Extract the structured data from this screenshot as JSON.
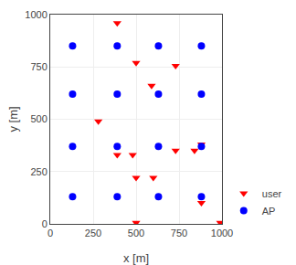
{
  "chart_data": {
    "type": "scatter",
    "xlabel": "x [m]",
    "ylabel": "y [m]",
    "series": [
      {
        "name": "user",
        "color": "#ff0000",
        "marker": "triangle-down",
        "x": [
          390,
          500,
          730,
          590,
          280,
          390,
          480,
          500,
          600,
          730,
          840,
          880,
          880,
          990,
          500
        ],
        "values": [
          960,
          770,
          755,
          660,
          490,
          330,
          330,
          220,
          220,
          350,
          350,
          380,
          100,
          5,
          5
        ]
      },
      {
        "name": "AP",
        "color": "#0000ff",
        "marker": "circle",
        "x": [
          130,
          390,
          630,
          880,
          130,
          390,
          630,
          880,
          130,
          390,
          630,
          880,
          130,
          390,
          630,
          880
        ],
        "values": [
          850,
          850,
          850,
          850,
          620,
          620,
          620,
          620,
          370,
          370,
          370,
          370,
          130,
          130,
          130,
          130
        ]
      }
    ],
    "xlim": [
      0,
      1000
    ],
    "ylim": [
      0,
      1000
    ],
    "xticks": [
      0,
      250,
      500,
      750,
      1000
    ],
    "yticks": [
      0,
      250,
      500,
      750,
      1000
    ],
    "grid": true,
    "legend": "lower right"
  }
}
